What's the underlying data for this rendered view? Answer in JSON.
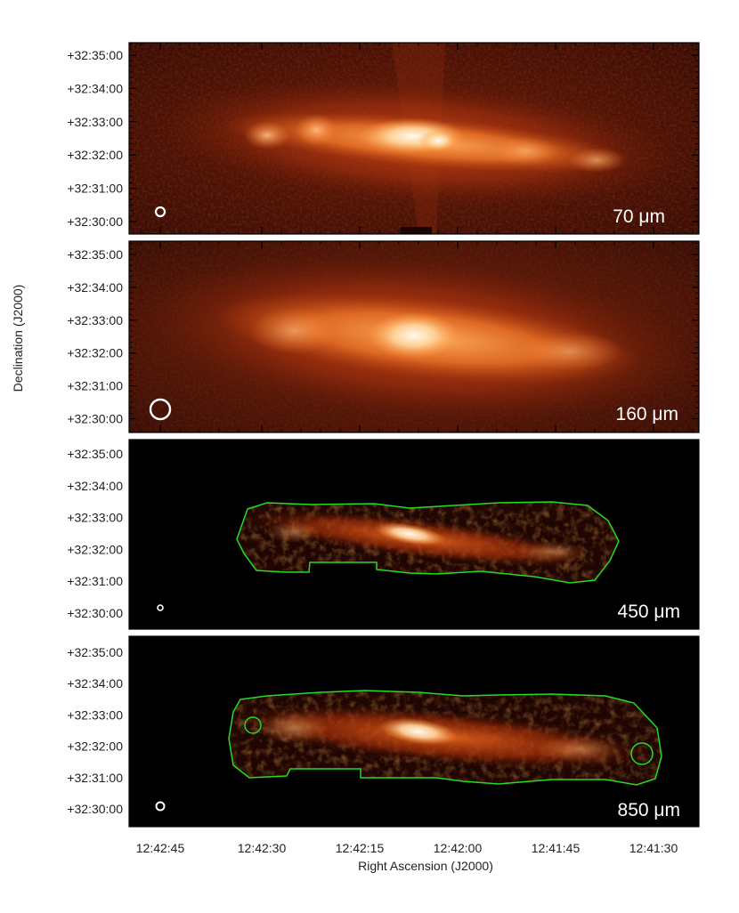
{
  "figure": {
    "ylabel": "Declination (J2000)",
    "xlabel": "Right Ascension (J2000)",
    "dec_ticks": [
      "+32:35:00",
      "+32:34:00",
      "+32:33:00",
      "+32:32:00",
      "+32:31:00",
      "+32:30:00"
    ],
    "ra_ticks": [
      "12:42:45",
      "12:42:30",
      "12:42:15",
      "12:42:00",
      "12:41:45",
      "12:41:30"
    ],
    "panels": [
      {
        "band": "70 μm",
        "beam": "small",
        "contour": false,
        "style": "diffuse-bright"
      },
      {
        "band": "160 μm",
        "beam": "large",
        "contour": false,
        "style": "diffuse-broad"
      },
      {
        "band": "450 μm",
        "beam": "tiny",
        "contour": true,
        "contour_color": "#22dd22",
        "style": "masked"
      },
      {
        "band": "850 μm",
        "beam": "small",
        "contour": true,
        "contour_color": "#22dd22",
        "style": "masked"
      }
    ]
  }
}
